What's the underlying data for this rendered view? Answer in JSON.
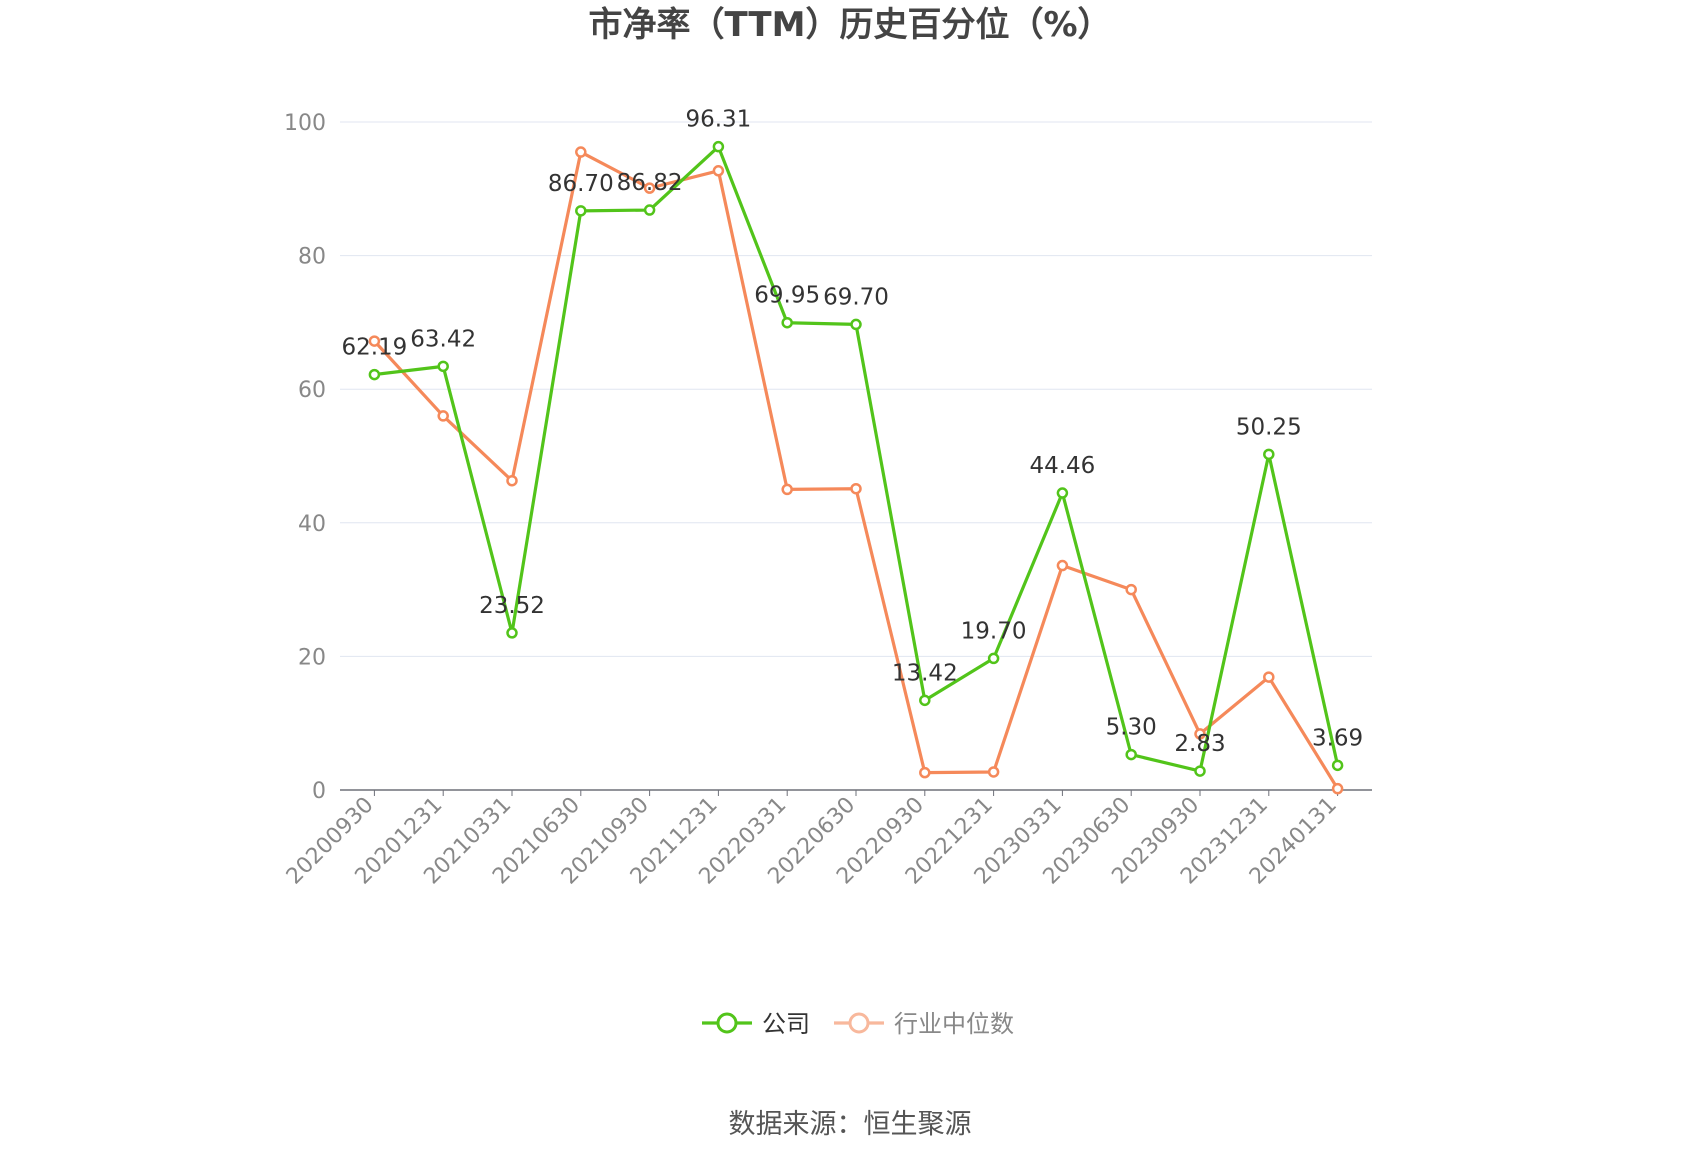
{
  "chart_data": {
    "type": "line",
    "title": "市净率（TTM）历史百分位（%）",
    "x": [
      "20200930",
      "20201231",
      "20210331",
      "20210630",
      "20210930",
      "20211231",
      "20220331",
      "20220630",
      "20220930",
      "20221231",
      "20230331",
      "20230630",
      "20230930",
      "20231231",
      "20240131"
    ],
    "ylim": [
      0,
      100
    ],
    "yticks": [
      0,
      20,
      40,
      60,
      80,
      100
    ],
    "grid": true,
    "legend_position": "bottom",
    "series": [
      {
        "name": "公司",
        "color": "#52c41a",
        "values": [
          62.19,
          63.42,
          23.52,
          86.7,
          86.82,
          96.31,
          69.95,
          69.7,
          13.42,
          19.7,
          44.46,
          5.3,
          2.83,
          50.25,
          3.69
        ],
        "labels": [
          "62.19",
          "63.42",
          "23.52",
          "86.70",
          "86.82",
          "96.31",
          "69.95",
          "69.70",
          "13.42",
          "19.70",
          "44.46",
          "5.30",
          "2.83",
          "50.25",
          "3.69"
        ]
      },
      {
        "name": "行业中位数",
        "color": "#f5895a",
        "values": [
          67.2,
          56.0,
          46.3,
          95.5,
          90.1,
          92.7,
          45.0,
          45.1,
          2.6,
          2.7,
          33.6,
          30.0,
          8.4,
          16.9,
          0.2
        ]
      }
    ],
    "source": "数据来源：恒生聚源"
  }
}
